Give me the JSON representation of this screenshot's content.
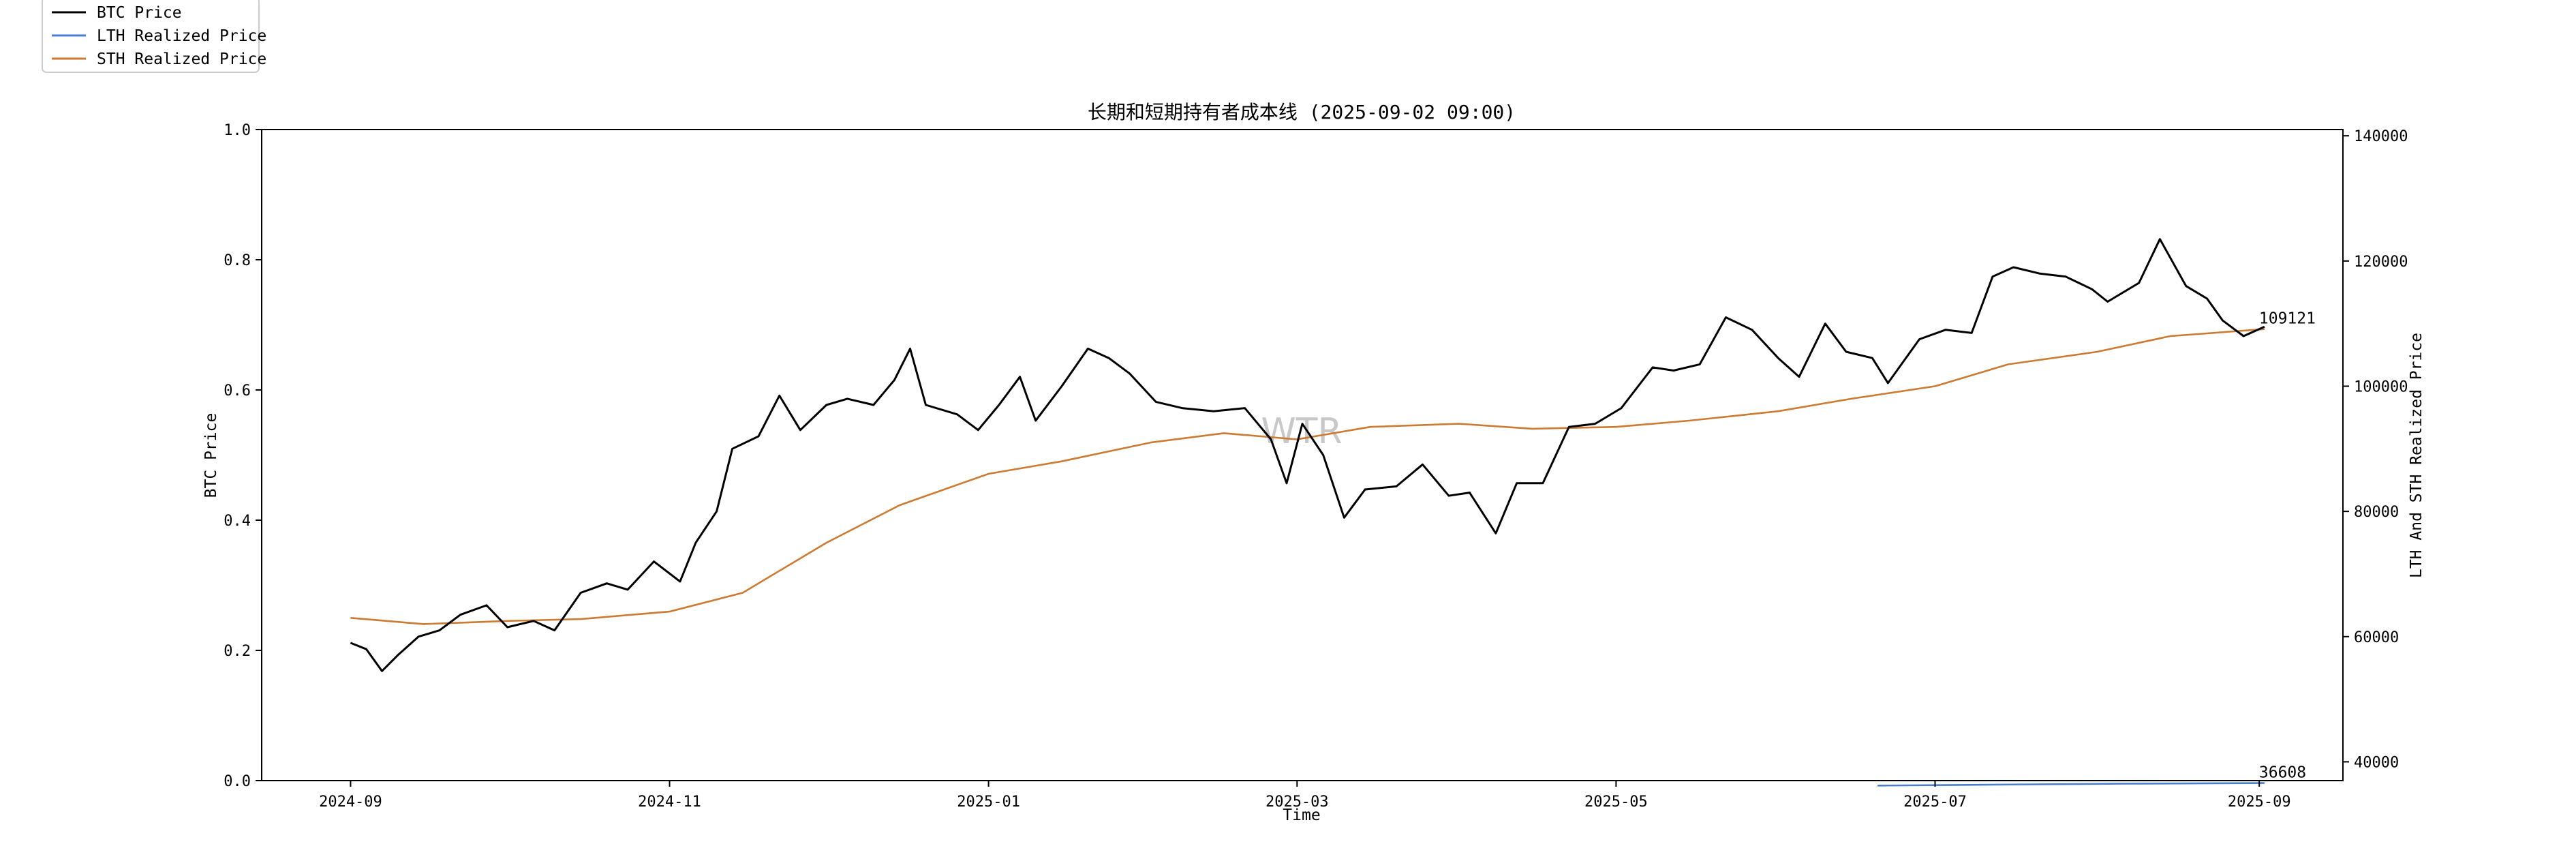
{
  "chart_data": {
    "type": "line",
    "title": "长期和短期持有者成本线 (2025-09-02 09:00)",
    "xlabel": "Time",
    "ylabel": "BTC Price",
    "ylabel_right": "LTH And STH Realized Price",
    "watermark": "WTR",
    "x_ticks": [
      "2024-09",
      "2024-11",
      "2025-01",
      "2025-03",
      "2025-05",
      "2025-07",
      "2025-09"
    ],
    "y_left_ticks": [
      "0.0",
      "0.2",
      "0.4",
      "0.6",
      "0.8",
      "1.0"
    ],
    "y_left_lim": [
      0,
      1
    ],
    "y_right_ticks": [
      "40000",
      "60000",
      "80000",
      "100000",
      "120000",
      "140000"
    ],
    "y_right_lim": [
      37000,
      141000
    ],
    "x_range": [
      "2024-08-15",
      "2025-09-17"
    ],
    "grid": false,
    "legend_position": "top-left",
    "annotations": [
      {
        "text": "109121",
        "series": "STH Realized Price"
      },
      {
        "text": "36608",
        "series": "LTH Realized Price"
      }
    ],
    "series": [
      {
        "name": "BTC Price",
        "color": "#000000",
        "axis": "right",
        "points": [
          [
            "2024-09-01",
            59000
          ],
          [
            "2024-09-04",
            58000
          ],
          [
            "2024-09-07",
            54500
          ],
          [
            "2024-09-10",
            57000
          ],
          [
            "2024-09-14",
            60000
          ],
          [
            "2024-09-18",
            61000
          ],
          [
            "2024-09-22",
            63500
          ],
          [
            "2024-09-27",
            65000
          ],
          [
            "2024-10-01",
            61500
          ],
          [
            "2024-10-06",
            62500
          ],
          [
            "2024-10-10",
            61000
          ],
          [
            "2024-10-15",
            67000
          ],
          [
            "2024-10-20",
            68500
          ],
          [
            "2024-10-24",
            67500
          ],
          [
            "2024-10-29",
            72000
          ],
          [
            "2024-11-03",
            68800
          ],
          [
            "2024-11-06",
            75000
          ],
          [
            "2024-11-10",
            80000
          ],
          [
            "2024-11-13",
            90000
          ],
          [
            "2024-11-18",
            92000
          ],
          [
            "2024-11-22",
            98500
          ],
          [
            "2024-11-26",
            93000
          ],
          [
            "2024-12-01",
            97000
          ],
          [
            "2024-12-05",
            98000
          ],
          [
            "2024-12-10",
            97000
          ],
          [
            "2024-12-14",
            101000
          ],
          [
            "2024-12-17",
            106000
          ],
          [
            "2024-12-20",
            97000
          ],
          [
            "2024-12-26",
            95500
          ],
          [
            "2024-12-30",
            93000
          ],
          [
            "2025-01-03",
            97000
          ],
          [
            "2025-01-07",
            101500
          ],
          [
            "2025-01-10",
            94500
          ],
          [
            "2025-01-15",
            100000
          ],
          [
            "2025-01-20",
            106000
          ],
          [
            "2025-01-24",
            104500
          ],
          [
            "2025-01-28",
            102000
          ],
          [
            "2025-02-02",
            97500
          ],
          [
            "2025-02-07",
            96500
          ],
          [
            "2025-02-13",
            96000
          ],
          [
            "2025-02-19",
            96500
          ],
          [
            "2025-02-24",
            91500
          ],
          [
            "2025-02-27",
            84500
          ],
          [
            "2025-03-02",
            94000
          ],
          [
            "2025-03-06",
            89000
          ],
          [
            "2025-03-10",
            79000
          ],
          [
            "2025-03-14",
            83500
          ],
          [
            "2025-03-20",
            84000
          ],
          [
            "2025-03-25",
            87500
          ],
          [
            "2025-03-30",
            82500
          ],
          [
            "2025-04-03",
            83000
          ],
          [
            "2025-04-08",
            76500
          ],
          [
            "2025-04-12",
            84500
          ],
          [
            "2025-04-17",
            84500
          ],
          [
            "2025-04-22",
            93500
          ],
          [
            "2025-04-27",
            94000
          ],
          [
            "2025-05-02",
            96500
          ],
          [
            "2025-05-08",
            103000
          ],
          [
            "2025-05-12",
            102500
          ],
          [
            "2025-05-17",
            103500
          ],
          [
            "2025-05-22",
            111000
          ],
          [
            "2025-05-27",
            109000
          ],
          [
            "2025-06-01",
            104500
          ],
          [
            "2025-06-05",
            101500
          ],
          [
            "2025-06-10",
            110000
          ],
          [
            "2025-06-14",
            105500
          ],
          [
            "2025-06-19",
            104500
          ],
          [
            "2025-06-22",
            100500
          ],
          [
            "2025-06-28",
            107500
          ],
          [
            "2025-07-03",
            109000
          ],
          [
            "2025-07-08",
            108500
          ],
          [
            "2025-07-12",
            117500
          ],
          [
            "2025-07-16",
            119000
          ],
          [
            "2025-07-21",
            118000
          ],
          [
            "2025-07-26",
            117500
          ],
          [
            "2025-07-31",
            115500
          ],
          [
            "2025-08-03",
            113500
          ],
          [
            "2025-08-09",
            116500
          ],
          [
            "2025-08-13",
            123500
          ],
          [
            "2025-08-18",
            116000
          ],
          [
            "2025-08-22",
            114000
          ],
          [
            "2025-08-25",
            110500
          ],
          [
            "2025-08-29",
            108000
          ],
          [
            "2025-09-02",
            109500
          ]
        ]
      },
      {
        "name": "LTH Realized Price",
        "color": "#4a7fd0",
        "axis": "right",
        "points": [
          [
            "2025-06-20",
            36200
          ],
          [
            "2025-07-05",
            36300
          ],
          [
            "2025-07-20",
            36400
          ],
          [
            "2025-08-05",
            36500
          ],
          [
            "2025-08-20",
            36550
          ],
          [
            "2025-09-02",
            36608
          ]
        ]
      },
      {
        "name": "STH Realized Price",
        "color": "#cd7b32",
        "axis": "right",
        "points": [
          [
            "2024-09-01",
            63000
          ],
          [
            "2024-09-15",
            62000
          ],
          [
            "2024-10-01",
            62500
          ],
          [
            "2024-10-15",
            62800
          ],
          [
            "2024-11-01",
            64000
          ],
          [
            "2024-11-15",
            67000
          ],
          [
            "2024-12-01",
            75000
          ],
          [
            "2024-12-15",
            81000
          ],
          [
            "2025-01-01",
            86000
          ],
          [
            "2025-01-15",
            88000
          ],
          [
            "2025-02-01",
            91000
          ],
          [
            "2025-02-15",
            92500
          ],
          [
            "2025-03-01",
            91500
          ],
          [
            "2025-03-15",
            93500
          ],
          [
            "2025-04-01",
            94000
          ],
          [
            "2025-04-15",
            93200
          ],
          [
            "2025-05-01",
            93500
          ],
          [
            "2025-05-15",
            94500
          ],
          [
            "2025-06-01",
            96000
          ],
          [
            "2025-06-15",
            98000
          ],
          [
            "2025-07-01",
            100000
          ],
          [
            "2025-07-15",
            103500
          ],
          [
            "2025-08-01",
            105500
          ],
          [
            "2025-08-15",
            108000
          ],
          [
            "2025-09-02",
            109121
          ]
        ]
      }
    ]
  }
}
